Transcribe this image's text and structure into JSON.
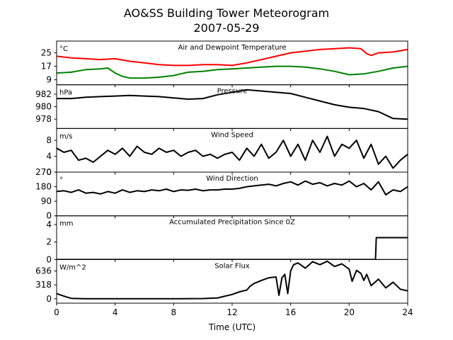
{
  "figure": {
    "title_line1": "AO&SS Building Tower Meteorogram",
    "title_line2": "2007-05-29",
    "xlabel": "Time (UTC)"
  },
  "chart_data": {
    "type": "line",
    "title": "AO&SS Building Tower Meteorogram 2007-05-29",
    "xlabel": "Time (UTC)",
    "xlim": [
      0,
      24
    ],
    "xticks": [
      0,
      4,
      8,
      12,
      16,
      20,
      24
    ],
    "panels": [
      {
        "title": "Air and Dewpoint Temperature",
        "unit": "°C",
        "ylim": [
          6,
          32
        ],
        "yticks": [
          9,
          17,
          25
        ],
        "series": [
          {
            "color": "#ff0000",
            "x": [
              0,
              1,
              2,
              3,
              4,
              5,
              6,
              7,
              8,
              9,
              10,
              11,
              12,
              13,
              14,
              15,
              16,
              17,
              18,
              19,
              20,
              20.8,
              21.2,
              21.5,
              22,
              23,
              24
            ],
            "y": [
              23,
              22,
              21.5,
              21,
              21.5,
              20,
              19,
              18,
              17.5,
              17.5,
              18,
              18,
              17.5,
              19,
              21,
              23,
              25,
              26,
              27,
              27.5,
              28,
              27.5,
              24.5,
              23.5,
              25,
              25.5,
              27
            ]
          },
          {
            "color": "#008000",
            "x": [
              0,
              1,
              2,
              3,
              3.5,
              4,
              4.5,
              5,
              6,
              7,
              8,
              9,
              10,
              11,
              12,
              13,
              14,
              15,
              16,
              17,
              18,
              19,
              20,
              21,
              22,
              23,
              24
            ],
            "y": [
              13,
              13.5,
              15,
              15.5,
              16,
              13,
              11,
              10,
              10,
              10.5,
              11.5,
              13.5,
              14,
              15,
              15.5,
              16,
              16.5,
              17,
              17,
              16.5,
              15.5,
              14,
              12,
              12.5,
              14,
              16,
              17
            ]
          }
        ]
      },
      {
        "title": "Pressure",
        "unit": "hPa",
        "ylim": [
          976.5,
          983.5
        ],
        "yticks": [
          978,
          980,
          982
        ],
        "series": [
          {
            "color": "#000000",
            "x": [
              0,
              1,
              2,
              3,
              4,
              5,
              6,
              7,
              8,
              9,
              10,
              11,
              12,
              13,
              14,
              15,
              16,
              17,
              18,
              19,
              20,
              21,
              22,
              23,
              24
            ],
            "y": [
              981.3,
              981.3,
              981.5,
              981.6,
              981.7,
              981.8,
              981.7,
              981.6,
              981.4,
              981.2,
              981.3,
              981.9,
              982.3,
              982.7,
              982.5,
              982.3,
              982.1,
              981.5,
              980.9,
              980.3,
              979.9,
              979.7,
              979.2,
              978.1,
              978
            ]
          }
        ]
      },
      {
        "title": "Wind Speed",
        "unit": "m/s",
        "ylim": [
          0,
          11
        ],
        "yticks": [
          0,
          4,
          8
        ],
        "series": [
          {
            "color": "#000000",
            "x": [
              0,
              0.5,
              1,
              1.5,
              2,
              2.5,
              3,
              3.5,
              4,
              4.5,
              5,
              5.5,
              6,
              6.5,
              7,
              7.5,
              8,
              8.5,
              9,
              9.5,
              10,
              10.5,
              11,
              11.5,
              12,
              12.5,
              13,
              13.5,
              14,
              14.5,
              15,
              15.5,
              16,
              16.5,
              17,
              17.5,
              18,
              18.5,
              19,
              19.5,
              20,
              20.5,
              21,
              21.5,
              22,
              22.5,
              23,
              23.5,
              24
            ],
            "y": [
              6,
              5,
              5.5,
              3,
              3.5,
              2.5,
              4,
              5.5,
              4.5,
              6,
              4,
              6.5,
              5,
              4.5,
              6,
              5,
              5.5,
              4,
              5,
              5.5,
              4,
              4.5,
              3.5,
              4.5,
              5,
              3,
              6,
              4,
              7,
              3.5,
              5,
              8,
              4,
              7,
              3,
              8,
              5,
              9,
              4,
              7,
              6,
              8,
              3.5,
              7,
              2,
              4,
              1,
              3,
              4.5
            ]
          }
        ]
      },
      {
        "title": "Wind Direction",
        "unit": "°",
        "ylim": [
          0,
          270
        ],
        "yticks": [
          0,
          90,
          180,
          270
        ],
        "series": [
          {
            "color": "#000000",
            "x": [
              0,
              0.5,
              1,
              1.5,
              2,
              2.5,
              3,
              3.5,
              4,
              4.5,
              5,
              5.5,
              6,
              6.5,
              7,
              7.5,
              8,
              8.5,
              9,
              9.5,
              10,
              10.5,
              11,
              11.5,
              12,
              12.5,
              13,
              13.5,
              14,
              14.5,
              15,
              15.5,
              16,
              16.5,
              17,
              17.5,
              18,
              18.5,
              19,
              19.5,
              20,
              20.5,
              21,
              21.5,
              22,
              22.5,
              23,
              23.5,
              24
            ],
            "y": [
              150,
              155,
              145,
              160,
              140,
              145,
              135,
              150,
              140,
              160,
              145,
              155,
              150,
              160,
              155,
              165,
              150,
              160,
              158,
              165,
              155,
              160,
              160,
              165,
              165,
              170,
              180,
              185,
              190,
              195,
              185,
              200,
              210,
              190,
              215,
              195,
              205,
              185,
              200,
              190,
              215,
              180,
              200,
              160,
              210,
              130,
              160,
              150,
              180
            ]
          }
        ]
      },
      {
        "title": "Accumulated Precipitation Since 0Z",
        "unit": "mm",
        "ylim": [
          0,
          5
        ],
        "yticks": [
          0,
          2,
          4
        ],
        "series": [
          {
            "color": "#000000",
            "x": [
              0,
              21.8,
              21.85,
              24
            ],
            "y": [
              0,
              0,
              2.5,
              2.5
            ]
          }
        ]
      },
      {
        "title": "Solar Flux",
        "unit": "W/m^2",
        "ylim": [
          -100,
          900
        ],
        "yticks": [
          0,
          318,
          636
        ],
        "ytick_labels": [
          "0",
          "318",
          "636"
        ],
        "series": [
          {
            "color": "#000000",
            "x": [
              0,
              0.5,
              1,
              2,
              4,
              6,
              8,
              10,
              11,
              11.5,
              12,
              12.5,
              13,
              13.2,
              13.5,
              14,
              14.5,
              15,
              15.2,
              15.4,
              15.6,
              15.8,
              16,
              16.2,
              16.5,
              17,
              17.5,
              18,
              18.5,
              19,
              19.5,
              20,
              20.2,
              20.5,
              20.8,
              21,
              21.2,
              21.5,
              22,
              22.5,
              23,
              23.5,
              24
            ],
            "y": [
              120,
              60,
              10,
              0,
              0,
              0,
              0,
              5,
              20,
              60,
              100,
              160,
              200,
              280,
              350,
              420,
              480,
              500,
              80,
              480,
              560,
              120,
              640,
              780,
              820,
              700,
              850,
              780,
              860,
              740,
              800,
              680,
              400,
              650,
              580,
              420,
              560,
              300,
              450,
              250,
              380,
              220,
              180
            ]
          }
        ]
      }
    ]
  }
}
